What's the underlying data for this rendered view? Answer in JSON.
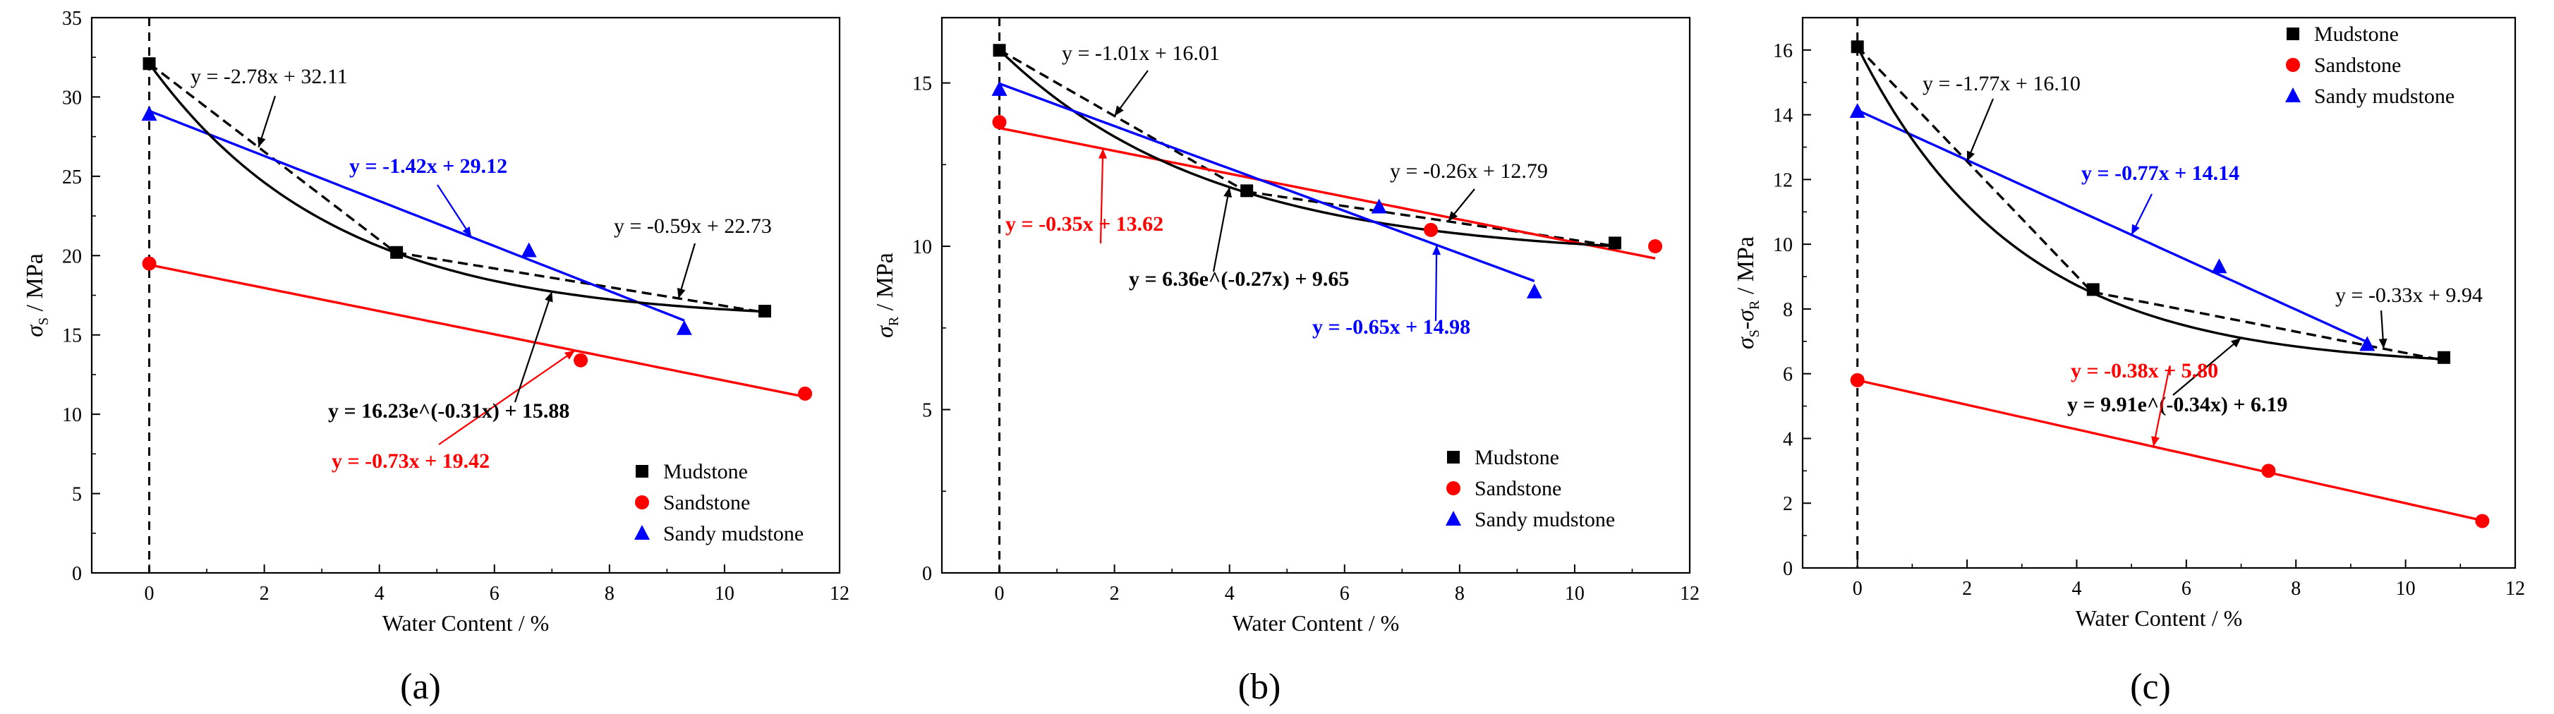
{
  "chart_data": [
    {
      "type": "scatter",
      "panel_label": "(a)",
      "xlabel": "Water Content / %",
      "ylabel_main": "σ",
      "ylabel_sub": "S",
      "ylabel_unit": " / MPa",
      "xlim": [
        -1,
        12
      ],
      "ylim": [
        0,
        35
      ],
      "xticks": [
        0,
        2,
        4,
        6,
        8,
        10,
        12
      ],
      "yticks": [
        0,
        5,
        10,
        15,
        20,
        25,
        30,
        35
      ],
      "legend_position": "bottom-right",
      "series": [
        {
          "name": "Mudstone",
          "color": "#000000",
          "marker": "square",
          "x": [
            0,
            4.3,
            10.7
          ],
          "y": [
            32.1,
            20.2,
            16.5
          ]
        },
        {
          "name": "Sandstone",
          "color": "#ff0000",
          "marker": "circle",
          "x": [
            0,
            7.5,
            11.4
          ],
          "y": [
            19.5,
            13.4,
            11.3
          ]
        },
        {
          "name": "Sandy mudstone",
          "color": "#0000ff",
          "marker": "triangle",
          "x": [
            0,
            6.6,
            9.3
          ],
          "y": [
            28.9,
            20.3,
            15.4
          ]
        }
      ],
      "fits": [
        {
          "kind": "linear",
          "style": "dashed",
          "color": "#000000",
          "m": -2.78,
          "b": 32.11,
          "x_range": [
            0,
            4.3
          ],
          "label": "y = -2.78x + 32.11",
          "bold": false
        },
        {
          "kind": "linear",
          "style": "dashed",
          "color": "#000000",
          "m": -0.59,
          "b": 22.73,
          "x_range": [
            4.3,
            10.7
          ],
          "label": "y = -0.59x + 22.73",
          "bold": false
        },
        {
          "kind": "linear",
          "style": "solid",
          "color": "#0000ff",
          "m": -1.42,
          "b": 29.12,
          "x_range": [
            0,
            9.3
          ],
          "label": "y = -1.42x + 29.12",
          "bold": true
        },
        {
          "kind": "linear",
          "style": "solid",
          "color": "#ff0000",
          "m": -0.73,
          "b": 19.42,
          "x_range": [
            0,
            11.4
          ],
          "label": "y = -0.73x + 19.42",
          "bold": true
        },
        {
          "kind": "exp",
          "style": "solid",
          "color": "#000000",
          "a": 16.23,
          "k": -0.31,
          "c": 15.88,
          "x_range": [
            0,
            10.7
          ],
          "label": "y = 16.23e^(-0.31x) + 15.88",
          "bold": true
        }
      ]
    },
    {
      "type": "scatter",
      "panel_label": "(b)",
      "xlabel": "Water Content / %",
      "ylabel_main": "σ",
      "ylabel_sub": "R",
      "ylabel_unit": " / MPa",
      "xlim": [
        -1,
        12
      ],
      "ylim": [
        0,
        17
      ],
      "xticks": [
        0,
        2,
        4,
        6,
        8,
        10,
        12
      ],
      "yticks": [
        0,
        5,
        10,
        15
      ],
      "legend_position": "bottom-right",
      "series": [
        {
          "name": "Mudstone",
          "color": "#000000",
          "marker": "square",
          "x": [
            0,
            4.3,
            10.7
          ],
          "y": [
            16.0,
            11.7,
            10.1
          ]
        },
        {
          "name": "Sandstone",
          "color": "#ff0000",
          "marker": "circle",
          "x": [
            0,
            7.5,
            11.4
          ],
          "y": [
            13.8,
            10.5,
            10.0
          ]
        },
        {
          "name": "Sandy mudstone",
          "color": "#0000ff",
          "marker": "triangle",
          "x": [
            0,
            6.6,
            9.3
          ],
          "y": [
            14.8,
            11.2,
            8.6
          ]
        }
      ],
      "fits": [
        {
          "kind": "linear",
          "style": "dashed",
          "color": "#000000",
          "m": -1.01,
          "b": 16.01,
          "x_range": [
            0,
            4.3
          ],
          "label": "y = -1.01x + 16.01",
          "bold": false
        },
        {
          "kind": "linear",
          "style": "dashed",
          "color": "#000000",
          "m": -0.26,
          "b": 12.79,
          "x_range": [
            4.3,
            10.7
          ],
          "label": "y = -0.26x + 12.79",
          "bold": false
        },
        {
          "kind": "linear",
          "style": "solid",
          "color": "#ff0000",
          "m": -0.35,
          "b": 13.62,
          "x_range": [
            0,
            11.4
          ],
          "label": "y = -0.35x + 13.62",
          "bold": true
        },
        {
          "kind": "exp",
          "style": "solid",
          "color": "#000000",
          "a": 6.36,
          "k": -0.27,
          "c": 9.65,
          "x_range": [
            0,
            10.7
          ],
          "label": "y = 6.36e^(-0.27x) + 9.65",
          "bold": true
        },
        {
          "kind": "linear",
          "style": "solid",
          "color": "#0000ff",
          "m": -0.65,
          "b": 14.98,
          "x_range": [
            0,
            9.3
          ],
          "label": "y = -0.65x + 14.98",
          "bold": true
        }
      ]
    },
    {
      "type": "scatter",
      "panel_label": "(c)",
      "xlabel": "Water Content / %",
      "ylabel_main": "σ",
      "ylabel_sub": "S",
      "ylabel_mid": "-σ",
      "ylabel_sub2": "R",
      "ylabel_unit": " / MPa",
      "xlim": [
        -1,
        12
      ],
      "ylim": [
        0,
        17
      ],
      "xticks": [
        0,
        2,
        4,
        6,
        8,
        10,
        12
      ],
      "yticks": [
        0,
        2,
        4,
        6,
        8,
        10,
        12,
        14,
        16
      ],
      "legend_position": "top-right",
      "series": [
        {
          "name": "Mudstone",
          "color": "#000000",
          "marker": "square",
          "x": [
            0,
            4.3,
            10.7
          ],
          "y": [
            16.1,
            8.6,
            6.5
          ]
        },
        {
          "name": "Sandstone",
          "color": "#ff0000",
          "marker": "circle",
          "x": [
            0,
            7.5,
            11.4
          ],
          "y": [
            5.8,
            3.0,
            1.45
          ]
        },
        {
          "name": "Sandy mudstone",
          "color": "#0000ff",
          "marker": "triangle",
          "x": [
            0,
            6.6,
            9.3
          ],
          "y": [
            14.1,
            9.3,
            6.9
          ]
        }
      ],
      "fits": [
        {
          "kind": "linear",
          "style": "dashed",
          "color": "#000000",
          "m": -1.77,
          "b": 16.1,
          "x_range": [
            0,
            4.3
          ],
          "label": "y = -1.77x + 16.10",
          "bold": false
        },
        {
          "kind": "linear",
          "style": "dashed",
          "color": "#000000",
          "m": -0.33,
          "b": 9.94,
          "x_range": [
            4.3,
            10.7
          ],
          "label": "y = -0.33x + 9.94",
          "bold": false
        },
        {
          "kind": "linear",
          "style": "solid",
          "color": "#0000ff",
          "m": -0.77,
          "b": 14.14,
          "x_range": [
            0,
            9.3
          ],
          "label": "y = -0.77x + 14.14",
          "bold": true
        },
        {
          "kind": "exp",
          "style": "solid",
          "color": "#000000",
          "a": 9.91,
          "k": -0.34,
          "c": 6.19,
          "x_range": [
            0,
            10.7
          ],
          "label": "y = 9.91e^(-0.34x) + 6.19",
          "bold": true
        },
        {
          "kind": "linear",
          "style": "solid",
          "color": "#ff0000",
          "m": -0.38,
          "b": 5.8,
          "x_range": [
            0,
            11.4
          ],
          "label": "y = -0.38x + 5.80",
          "bold": true
        }
      ]
    }
  ]
}
